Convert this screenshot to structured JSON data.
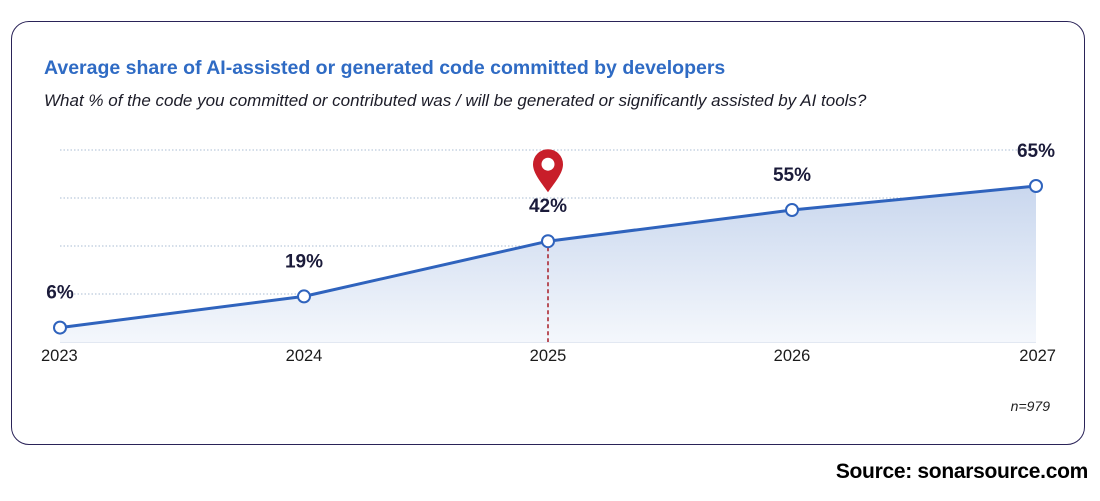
{
  "title": "Average share of AI-assisted or generated code committed by developers",
  "subtitle": "What % of the code you committed or contributed was / will be generated or significantly assisted by AI tools?",
  "note": "n=979",
  "source": "Source: sonarsource.com",
  "chart_data": {
    "type": "area",
    "categories": [
      "2023",
      "2024",
      "2025",
      "2026",
      "2027"
    ],
    "values": [
      6,
      19,
      42,
      55,
      65
    ],
    "value_labels": [
      "6%",
      "19%",
      "42%",
      "55%",
      "65%"
    ],
    "highlight": "2025",
    "ylim": [
      0,
      80
    ],
    "grid": true,
    "legend": "none",
    "colors": {
      "line": "#2f63bd",
      "area_top": "#c9d7ee",
      "area_bottom": "#f4f7fc",
      "grid": "#a9bcd3",
      "marker": "#c81e2a",
      "highlight_line": "#a81c26"
    }
  }
}
